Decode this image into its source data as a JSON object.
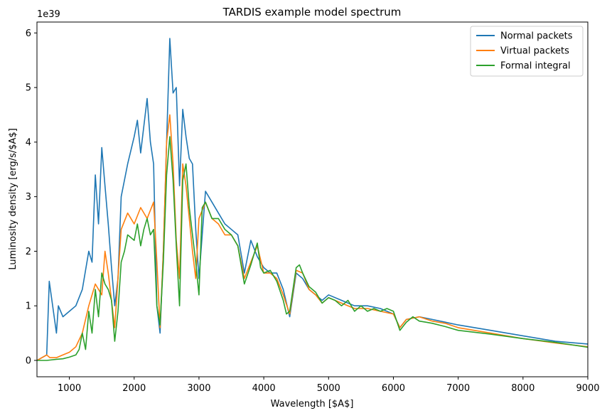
{
  "chart_data": {
    "type": "line",
    "title": "TARDIS example model spectrum",
    "xlabel": "Wavelength [$A$]",
    "ylabel": "Luminosity density [erg/s/$A$]",
    "y_offset_text": "1e39",
    "xlim": [
      500,
      9000
    ],
    "ylim": [
      -0.3,
      6.2
    ],
    "xticks": [
      1000,
      2000,
      3000,
      4000,
      5000,
      6000,
      7000,
      8000,
      9000
    ],
    "yticks": [
      0,
      1,
      2,
      3,
      4,
      5,
      6
    ],
    "grid": false,
    "legend_position": "top-right",
    "series": [
      {
        "name": "Normal packets",
        "color": "#1f77b4",
        "x": [
          500,
          650,
          690,
          800,
          830,
          900,
          1000,
          1100,
          1200,
          1300,
          1350,
          1400,
          1450,
          1500,
          1550,
          1600,
          1650,
          1700,
          1750,
          1800,
          1900,
          2000,
          2050,
          2100,
          2200,
          2250,
          2300,
          2350,
          2400,
          2450,
          2500,
          2550,
          2600,
          2650,
          2700,
          2750,
          2800,
          2850,
          2900,
          2950,
          3000,
          3100,
          3200,
          3300,
          3400,
          3500,
          3600,
          3700,
          3800,
          3900,
          4000,
          4100,
          4200,
          4300,
          4400,
          4500,
          4600,
          4700,
          4800,
          4900,
          5000,
          5200,
          5400,
          5600,
          5800,
          6000,
          6100,
          6200,
          6400,
          6600,
          6800,
          7000,
          7500,
          8000,
          8500,
          9000
        ],
        "y": [
          0,
          0.1,
          1.45,
          0.5,
          1.0,
          0.8,
          0.9,
          1.0,
          1.3,
          2.0,
          1.8,
          3.4,
          2.5,
          3.9,
          3.2,
          2.5,
          1.7,
          1.0,
          1.5,
          3.0,
          3.6,
          4.1,
          4.4,
          3.8,
          4.8,
          4.0,
          3.6,
          1.0,
          0.5,
          2.0,
          4.0,
          5.9,
          4.9,
          5.0,
          3.2,
          4.6,
          4.1,
          3.7,
          3.6,
          2.4,
          1.5,
          3.1,
          2.9,
          2.7,
          2.5,
          2.4,
          2.3,
          1.6,
          2.2,
          1.9,
          1.7,
          1.6,
          1.6,
          1.3,
          0.8,
          1.6,
          1.5,
          1.3,
          1.2,
          1.1,
          1.2,
          1.1,
          1.0,
          1.0,
          0.95,
          0.85,
          0.6,
          0.75,
          0.8,
          0.75,
          0.7,
          0.65,
          0.55,
          0.45,
          0.35,
          0.3
        ]
      },
      {
        "name": "Virtual packets",
        "color": "#ff7f0e",
        "x": [
          500,
          650,
          700,
          800,
          900,
          1000,
          1100,
          1200,
          1300,
          1400,
          1500,
          1550,
          1600,
          1700,
          1800,
          1900,
          2000,
          2100,
          2200,
          2300,
          2350,
          2400,
          2450,
          2500,
          2550,
          2600,
          2650,
          2700,
          2750,
          2800,
          2850,
          2900,
          2950,
          3000,
          3100,
          3200,
          3300,
          3400,
          3500,
          3600,
          3700,
          3800,
          3900,
          4000,
          4100,
          4200,
          4300,
          4400,
          4500,
          4600,
          4700,
          4800,
          4900,
          5000,
          5200,
          5400,
          5600,
          5800,
          6000,
          6100,
          6200,
          6400,
          6600,
          6800,
          7000,
          7500,
          8000,
          8500,
          9000
        ],
        "y": [
          0,
          0.1,
          0.05,
          0.05,
          0.1,
          0.15,
          0.25,
          0.5,
          1.0,
          1.4,
          1.2,
          2.0,
          1.6,
          0.6,
          2.4,
          2.7,
          2.5,
          2.8,
          2.6,
          2.9,
          1.8,
          0.6,
          2.0,
          4.0,
          4.5,
          3.6,
          2.2,
          1.5,
          3.6,
          3.2,
          2.6,
          2.0,
          1.5,
          2.6,
          2.9,
          2.6,
          2.5,
          2.3,
          2.3,
          2.1,
          1.5,
          1.8,
          2.1,
          1.6,
          1.6,
          1.5,
          1.2,
          0.85,
          1.65,
          1.6,
          1.3,
          1.2,
          1.05,
          1.15,
          1.05,
          0.95,
          0.95,
          0.9,
          0.85,
          0.6,
          0.75,
          0.8,
          0.72,
          0.68,
          0.6,
          0.5,
          0.4,
          0.32,
          0.25
        ]
      },
      {
        "name": "Formal integral",
        "color": "#2ca02c",
        "x": [
          500,
          650,
          800,
          900,
          1000,
          1100,
          1150,
          1200,
          1250,
          1300,
          1350,
          1400,
          1450,
          1500,
          1550,
          1600,
          1650,
          1700,
          1750,
          1800,
          1850,
          1900,
          2000,
          2050,
          2100,
          2150,
          2200,
          2250,
          2300,
          2350,
          2400,
          2450,
          2500,
          2550,
          2600,
          2650,
          2700,
          2750,
          2800,
          2850,
          2900,
          2950,
          3000,
          3050,
          3100,
          3200,
          3300,
          3400,
          3500,
          3600,
          3700,
          3800,
          3900,
          3950,
          4000,
          4100,
          4200,
          4300,
          4350,
          4400,
          4500,
          4550,
          4600,
          4700,
          4800,
          4900,
          5000,
          5100,
          5200,
          5300,
          5400,
          5500,
          5600,
          5700,
          5800,
          5900,
          6000,
          6100,
          6200,
          6300,
          6400,
          6500,
          6600,
          6800,
          7000,
          7500,
          8000,
          8500,
          9000
        ],
        "y": [
          0,
          0,
          0.02,
          0.03,
          0.06,
          0.1,
          0.2,
          0.5,
          0.2,
          0.9,
          0.5,
          1.3,
          0.8,
          1.6,
          1.4,
          1.3,
          1.1,
          0.35,
          0.9,
          1.8,
          2.0,
          2.3,
          2.2,
          2.5,
          2.1,
          2.4,
          2.6,
          2.3,
          2.4,
          1.0,
          0.65,
          1.8,
          3.4,
          4.1,
          3.3,
          2.1,
          1.0,
          3.3,
          3.6,
          2.8,
          2.3,
          1.8,
          1.2,
          2.8,
          2.9,
          2.6,
          2.6,
          2.4,
          2.3,
          2.1,
          1.4,
          1.75,
          2.15,
          1.7,
          1.6,
          1.65,
          1.45,
          1.1,
          0.85,
          0.9,
          1.7,
          1.75,
          1.6,
          1.35,
          1.25,
          1.05,
          1.15,
          1.1,
          1.0,
          1.1,
          0.9,
          1.0,
          0.9,
          0.95,
          0.9,
          0.95,
          0.9,
          0.55,
          0.7,
          0.8,
          0.72,
          0.7,
          0.68,
          0.62,
          0.55,
          0.48,
          0.4,
          0.33,
          0.24
        ]
      }
    ]
  }
}
